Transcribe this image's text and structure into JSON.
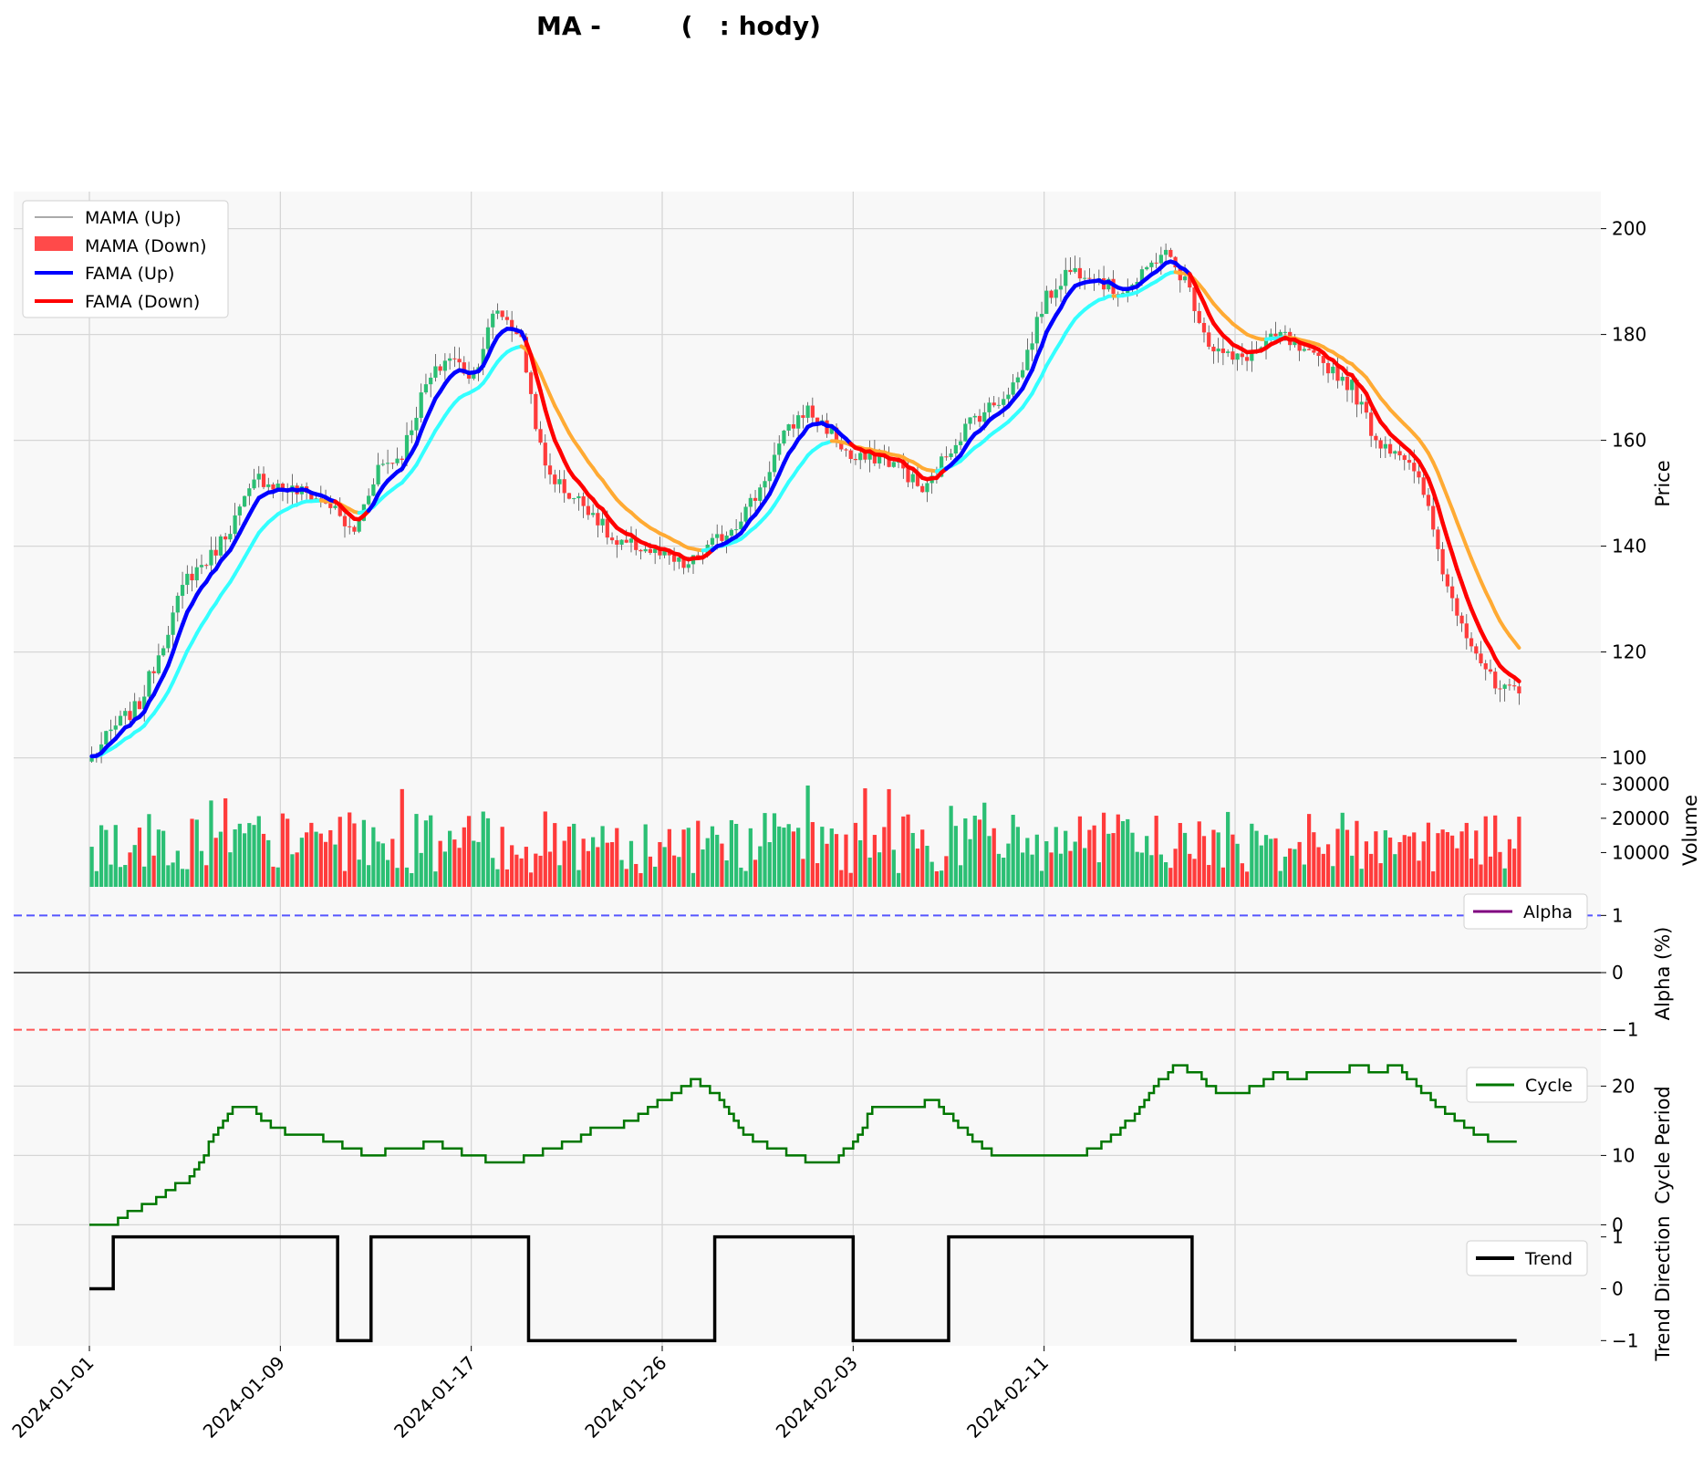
{
  "title": "        MA -         (   : hody)",
  "chart_data": {
    "type": "line",
    "x_tick_labels": [
      "2024-01-01",
      "2024-01-09",
      "2024-01-17",
      "2024-01-26",
      "2024-02-03",
      "2024-02-11"
    ],
    "n_days": 60,
    "panels": {
      "price": {
        "ylabel": "Price",
        "ylim": [
          97,
          207
        ],
        "yticks": [
          "100",
          "120",
          "140",
          "160",
          "180",
          "200"
        ],
        "legend": [
          "MAMA (Up)",
          "MAMA (Down)",
          "FAMA (Up)",
          "FAMA (Down)"
        ],
        "close_anchors": [
          [
            0,
            100
          ],
          [
            1,
            106
          ],
          [
            2,
            110
          ],
          [
            3,
            122
          ],
          [
            4,
            134
          ],
          [
            5,
            138
          ],
          [
            6,
            145
          ],
          [
            7,
            153
          ],
          [
            8,
            151
          ],
          [
            9,
            150
          ],
          [
            10,
            148
          ],
          [
            11,
            142
          ],
          [
            12,
            155
          ],
          [
            13,
            157
          ],
          [
            14,
            170
          ],
          [
            15,
            176
          ],
          [
            16,
            172
          ],
          [
            17,
            185
          ],
          [
            18,
            180
          ],
          [
            19,
            155
          ],
          [
            20,
            150
          ],
          [
            21,
            147
          ],
          [
            22,
            140
          ],
          [
            23,
            140
          ],
          [
            24,
            138
          ],
          [
            25,
            136
          ],
          [
            26,
            140
          ],
          [
            27,
            144
          ],
          [
            28,
            150
          ],
          [
            29,
            160
          ],
          [
            30,
            166
          ],
          [
            31,
            162
          ],
          [
            32,
            156
          ],
          [
            33,
            157
          ],
          [
            34,
            155
          ],
          [
            35,
            150
          ],
          [
            36,
            158
          ],
          [
            37,
            164
          ],
          [
            38,
            167
          ],
          [
            39,
            172
          ],
          [
            40,
            186
          ],
          [
            41,
            192
          ],
          [
            42,
            192
          ],
          [
            43,
            188
          ],
          [
            44,
            190
          ],
          [
            45,
            196
          ],
          [
            46,
            190
          ],
          [
            47,
            178
          ],
          [
            48,
            175
          ],
          [
            49,
            177
          ],
          [
            50,
            180
          ],
          [
            51,
            176
          ],
          [
            52,
            174
          ],
          [
            53,
            170
          ],
          [
            54,
            160
          ],
          [
            55,
            158
          ],
          [
            56,
            150
          ],
          [
            57,
            132
          ],
          [
            58,
            122
          ],
          [
            59,
            113
          ],
          [
            60,
            112
          ]
        ]
      },
      "volume": {
        "ylabel": "Volume",
        "ylim": [
          0,
          33000
        ],
        "yticks": [
          "10000",
          "20000",
          "30000"
        ]
      },
      "alpha": {
        "ylabel": "Alpha (%)",
        "ylim": [
          -1.5,
          1.5
        ],
        "yticks": [
          "-1",
          "0",
          "1"
        ],
        "legend": "Alpha",
        "upper_line": 1,
        "lower_line": -1
      },
      "cycle": {
        "ylabel": "Cycle Period",
        "ylim": [
          -1,
          24
        ],
        "yticks": [
          "0",
          "10",
          "20"
        ],
        "legend": "Cycle",
        "anchors": [
          [
            0,
            0
          ],
          [
            1,
            0
          ],
          [
            2,
            2
          ],
          [
            3,
            3
          ],
          [
            4,
            5
          ],
          [
            5,
            7
          ],
          [
            6,
            12
          ],
          [
            7,
            17
          ],
          [
            8,
            17
          ],
          [
            9,
            14
          ],
          [
            10,
            13
          ],
          [
            11,
            13
          ],
          [
            12,
            12
          ],
          [
            13,
            11
          ],
          [
            14,
            10
          ],
          [
            15,
            11
          ],
          [
            16,
            11
          ],
          [
            17,
            12
          ],
          [
            18,
            11
          ],
          [
            19,
            10
          ],
          [
            20,
            9
          ],
          [
            21,
            9
          ],
          [
            22,
            10
          ],
          [
            23,
            11
          ],
          [
            24,
            12
          ],
          [
            25,
            14
          ],
          [
            26,
            14
          ],
          [
            27,
            15
          ],
          [
            28,
            17
          ],
          [
            29,
            19
          ],
          [
            30,
            21
          ],
          [
            31,
            19
          ],
          [
            32,
            15
          ],
          [
            33,
            12
          ],
          [
            34,
            11
          ],
          [
            35,
            10
          ],
          [
            36,
            9
          ],
          [
            37,
            9
          ],
          [
            38,
            12
          ],
          [
            39,
            17
          ],
          [
            40,
            17
          ],
          [
            41,
            17
          ],
          [
            42,
            18
          ],
          [
            43,
            15
          ],
          [
            44,
            12
          ],
          [
            45,
            10
          ],
          [
            46,
            10
          ],
          [
            47,
            10
          ],
          [
            48,
            10
          ],
          [
            49,
            10
          ],
          [
            50,
            11
          ],
          [
            51,
            13
          ],
          [
            52,
            16
          ],
          [
            53,
            20
          ],
          [
            54,
            23
          ],
          [
            55,
            22
          ],
          [
            56,
            19
          ],
          [
            57,
            19
          ],
          [
            58,
            20
          ],
          [
            59,
            22
          ],
          [
            60,
            21
          ],
          [
            61,
            22
          ],
          [
            62,
            22
          ],
          [
            63,
            23
          ],
          [
            64,
            22
          ],
          [
            65,
            23
          ],
          [
            66,
            20
          ],
          [
            67,
            17
          ],
          [
            68,
            15
          ],
          [
            69,
            13
          ],
          [
            70,
            12
          ],
          [
            71,
            12
          ]
        ]
      },
      "trend": {
        "ylabel": "Trend Direction",
        "ylim": [
          -1.1,
          1.1
        ],
        "yticks": [
          "-1",
          "0",
          "1"
        ],
        "legend": "Trend"
      }
    },
    "colors": {
      "up": "#2bbf74",
      "down": "#ff3b3b",
      "fama_up": "#0000ff",
      "fama_down": "#ff0000",
      "mama_cyan": "#33ffff",
      "mama_orange": "#ffaa33",
      "cycle": "#007700",
      "alpha_line": "#800080"
    }
  }
}
